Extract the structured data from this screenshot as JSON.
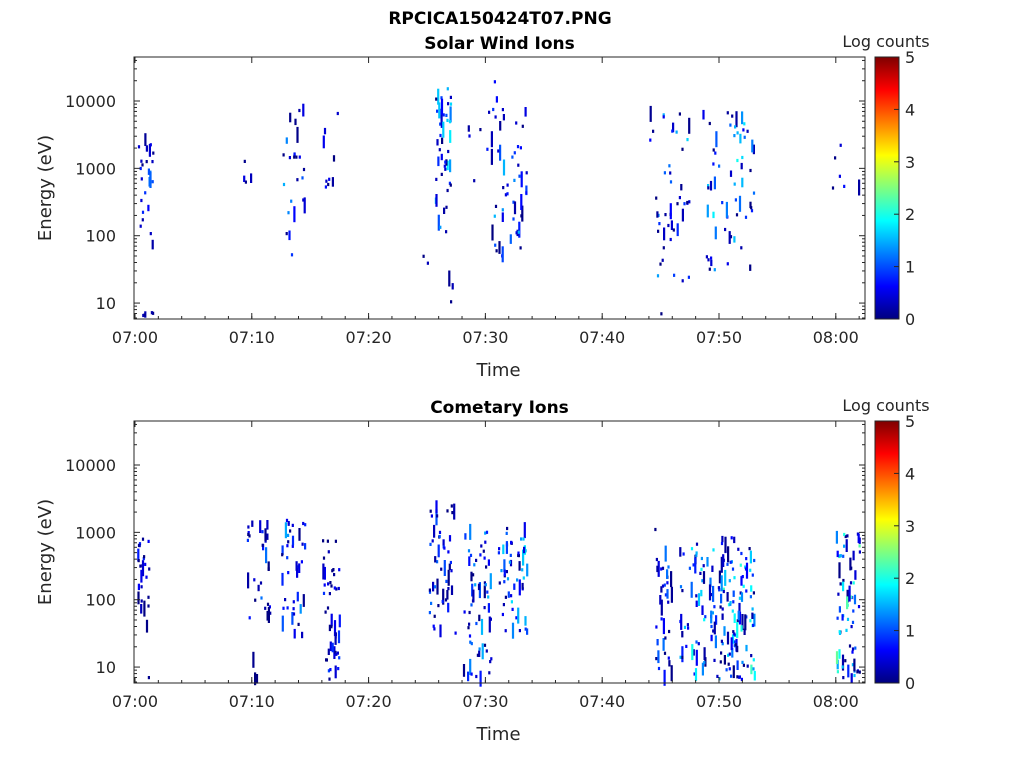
{
  "figure": {
    "main_title": "RPCICA150424T07.PNG"
  },
  "colorscale": [
    "#00007f",
    "#0000ff",
    "#007fff",
    "#00ffff",
    "#7fff7f",
    "#ffff00",
    "#ff7f00",
    "#ff0000",
    "#7f0000"
  ],
  "chart_data": [
    {
      "type": "heatmap",
      "title": "Solar Wind Ions",
      "xlabel": "Time",
      "ylabel": "Energy (eV)",
      "x_range": [
        "06:59:55",
        "08:02:30"
      ],
      "y_range": [
        5.8,
        45000
      ],
      "y_scale": "log",
      "x_ticks": [
        "07:00",
        "07:10",
        "07:20",
        "07:30",
        "07:40",
        "07:50",
        "08:00"
      ],
      "y_ticks": [
        10,
        100,
        1000,
        10000
      ],
      "y_tick_labels": [
        "10",
        "100",
        "1000",
        "10000"
      ],
      "colorbar": {
        "label": "Log counts",
        "range": [
          0,
          5
        ],
        "ticks": [
          "0",
          "1",
          "2",
          "3",
          "4",
          "5"
        ]
      },
      "grid": false,
      "clusters": [
        {
          "t": [
            "07:00:10",
            "07:01:30"
          ],
          "e": [
            60,
            3500
          ],
          "n": 20,
          "v": [
            0,
            0.9
          ]
        },
        {
          "t": [
            "07:01:00",
            "07:01:30"
          ],
          "e": [
            600,
            900
          ],
          "n": 6,
          "v": [
            1.0,
            1.5
          ]
        },
        {
          "t": [
            "07:00:20",
            "07:01:40"
          ],
          "e": [
            6.5,
            7.5
          ],
          "n": 5,
          "v": [
            0,
            0.3
          ]
        },
        {
          "t": [
            "07:09",
            "07:11"
          ],
          "e": [
            600,
            1700
          ],
          "n": 4,
          "v": [
            0,
            0.5
          ]
        },
        {
          "t": [
            "07:12:30",
            "07:14:30"
          ],
          "e": [
            40,
            7500
          ],
          "n": 25,
          "v": [
            0,
            1.5
          ]
        },
        {
          "t": [
            "07:16",
            "07:17:30"
          ],
          "e": [
            500,
            9000
          ],
          "n": 9,
          "v": [
            0,
            0.8
          ]
        },
        {
          "t": [
            "07:24:30",
            "07:25:30"
          ],
          "e": [
            35,
            50
          ],
          "n": 2,
          "v": [
            0,
            0.3
          ]
        },
        {
          "t": [
            "07:25:40",
            "07:27:00"
          ],
          "e": [
            80,
            16000
          ],
          "n": 45,
          "v": [
            0,
            1.8
          ]
        },
        {
          "t": [
            "07:26:30",
            "07:27:10"
          ],
          "e": [
            6.5,
            25
          ],
          "n": 3,
          "v": [
            0,
            0.3
          ]
        },
        {
          "t": [
            "07:28",
            "07:31"
          ],
          "e": [
            600,
            12000
          ],
          "n": 8,
          "v": [
            0,
            0.8
          ]
        },
        {
          "t": [
            "07:30:30",
            "07:33:30"
          ],
          "e": [
            50,
            20000
          ],
          "n": 50,
          "v": [
            0,
            1.6
          ]
        },
        {
          "t": [
            "07:44:00",
            "07:47:30"
          ],
          "e": [
            20,
            7000
          ],
          "n": 45,
          "v": [
            0,
            1.7
          ]
        },
        {
          "t": [
            "07:44:40",
            "07:45:10"
          ],
          "e": [
            6.5,
            7.5
          ],
          "n": 1,
          "v": [
            0,
            0.2
          ]
        },
        {
          "t": [
            "07:48:30",
            "07:53:00"
          ],
          "e": [
            30,
            10000
          ],
          "n": 60,
          "v": [
            0,
            2.0
          ]
        },
        {
          "t": [
            "07:59:00",
            "08:02:00"
          ],
          "e": [
            400,
            2500
          ],
          "n": 6,
          "v": [
            0,
            0.8
          ]
        }
      ]
    },
    {
      "type": "heatmap",
      "title": "Cometary Ions",
      "xlabel": "Time",
      "ylabel": "Energy (eV)",
      "x_range": [
        "06:59:55",
        "08:02:30"
      ],
      "y_range": [
        5.8,
        45000
      ],
      "y_scale": "log",
      "x_ticks": [
        "07:00",
        "07:10",
        "07:20",
        "07:30",
        "07:40",
        "07:50",
        "08:00"
      ],
      "y_ticks": [
        10,
        100,
        1000,
        10000
      ],
      "y_tick_labels": [
        "10",
        "100",
        "1000",
        "10000"
      ],
      "colorbar": {
        "label": "Log counts",
        "range": [
          0,
          5
        ],
        "ticks": [
          "0",
          "1",
          "2",
          "3",
          "4",
          "5"
        ]
      },
      "grid": false,
      "clusters": [
        {
          "t": [
            "07:00:05",
            "07:01:10"
          ],
          "e": [
            35,
            800
          ],
          "n": 25,
          "v": [
            0,
            0.9
          ]
        },
        {
          "t": [
            "07:00:50",
            "07:01:20"
          ],
          "e": [
            6.5,
            7.5
          ],
          "n": 1,
          "v": [
            0,
            0.2
          ]
        },
        {
          "t": [
            "07:09:30",
            "07:11:30"
          ],
          "e": [
            50,
            1700
          ],
          "n": 30,
          "v": [
            0,
            1.2
          ]
        },
        {
          "t": [
            "07:10:00",
            "07:10:30"
          ],
          "e": [
            6.5,
            15
          ],
          "n": 3,
          "v": [
            0,
            0.2
          ]
        },
        {
          "t": [
            "07:12:30",
            "07:14:30"
          ],
          "e": [
            25,
            1800
          ],
          "n": 40,
          "v": [
            0,
            1.5
          ]
        },
        {
          "t": [
            "07:16:00",
            "07:17:30"
          ],
          "e": [
            8,
            800
          ],
          "n": 45,
          "v": [
            0,
            1.0
          ]
        },
        {
          "t": [
            "07:16:20",
            "07:16:50"
          ],
          "e": [
            6.5,
            7.5
          ],
          "n": 1,
          "v": [
            0,
            0.2
          ]
        },
        {
          "t": [
            "07:25:00",
            "07:27:30"
          ],
          "e": [
            30,
            2600
          ],
          "n": 50,
          "v": [
            0,
            1.2
          ]
        },
        {
          "t": [
            "07:28:00",
            "07:30:30"
          ],
          "e": [
            6.5,
            1100
          ],
          "n": 60,
          "v": [
            0,
            1.6
          ]
        },
        {
          "t": [
            "07:31:00",
            "07:33:30"
          ],
          "e": [
            30,
            1300
          ],
          "n": 55,
          "v": [
            0,
            1.8
          ]
        },
        {
          "t": [
            "07:44:00",
            "07:45:00"
          ],
          "e": [
            1100,
            1500
          ],
          "n": 1,
          "v": [
            0,
            0.3
          ]
        },
        {
          "t": [
            "07:44:30",
            "07:46:00"
          ],
          "e": [
            6.5,
            500
          ],
          "n": 35,
          "v": [
            0,
            1.2
          ]
        },
        {
          "t": [
            "07:46:30",
            "07:50:00"
          ],
          "e": [
            6.5,
            700
          ],
          "n": 70,
          "v": [
            0,
            2.0
          ]
        },
        {
          "t": [
            "07:50:00",
            "07:53:00"
          ],
          "e": [
            6.5,
            900
          ],
          "n": 110,
          "v": [
            0,
            2.2
          ]
        },
        {
          "t": [
            "08:00:00",
            "08:02:00"
          ],
          "e": [
            6.5,
            1100
          ],
          "n": 70,
          "v": [
            0,
            2.4
          ]
        }
      ]
    }
  ]
}
